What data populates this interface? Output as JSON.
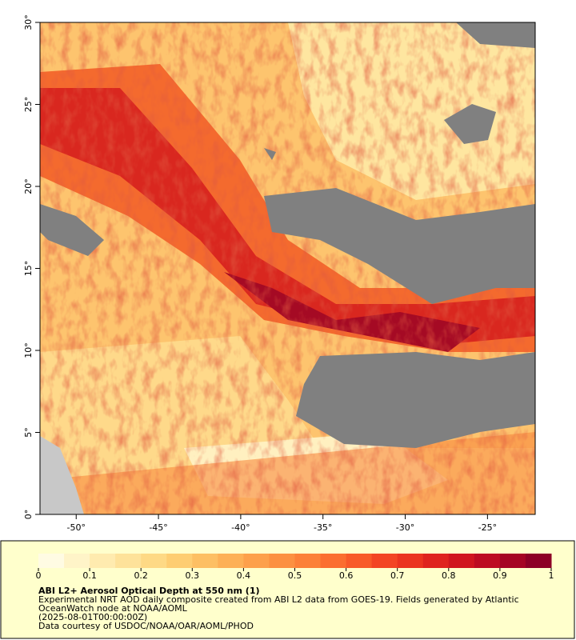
{
  "map": {
    "xlim": [
      -52.2,
      -22.1
    ],
    "ylim": [
      0,
      30
    ],
    "xticks": [
      {
        "value": -50,
        "label": "-50°"
      },
      {
        "value": -45,
        "label": "-45°"
      },
      {
        "value": -40,
        "label": "-40°"
      },
      {
        "value": -35,
        "label": "-35°"
      },
      {
        "value": -30,
        "label": "-30°"
      },
      {
        "value": -25,
        "label": "-25°"
      }
    ],
    "yticks": [
      {
        "value": 0,
        "label": "0°"
      },
      {
        "value": 5,
        "label": "5°"
      },
      {
        "value": 10,
        "label": "10°"
      },
      {
        "value": 15,
        "label": "15°"
      },
      {
        "value": 20,
        "label": "20°"
      },
      {
        "value": 25,
        "label": "25°"
      },
      {
        "value": 30,
        "label": "30°"
      }
    ]
  },
  "colorbar": {
    "lim": [
      0,
      1
    ],
    "ticks": [
      0,
      0.1,
      0.2,
      0.3,
      0.4,
      0.5,
      0.6,
      0.7,
      0.8,
      0.9,
      1
    ],
    "colors": [
      "#fffbe3",
      "#fff4c8",
      "#ffebaf",
      "#fee29a",
      "#fed985",
      "#fecd72",
      "#fdbf63",
      "#fdb056",
      "#fda04b",
      "#fc9041",
      "#fc8038",
      "#fb6e30",
      "#f85a29",
      "#f34524",
      "#eb3420",
      "#df231f",
      "#d0161f",
      "#bd0c22",
      "#a50524",
      "#8d0026"
    ]
  },
  "legend": {
    "title": "ABI L2+ Aerosol Optical Depth at 550 nm (1)",
    "description": "Experimental NRT AOD daily composite created from ABI L2 data from GOES-19. Fields generated by Atlantic OceanWatch node at NOAA/AOML",
    "time": "(2025-08-01T00:00:00Z)",
    "credit": "Data courtesy of USDOC/NOAA/OAR/AOML/PHOD"
  }
}
